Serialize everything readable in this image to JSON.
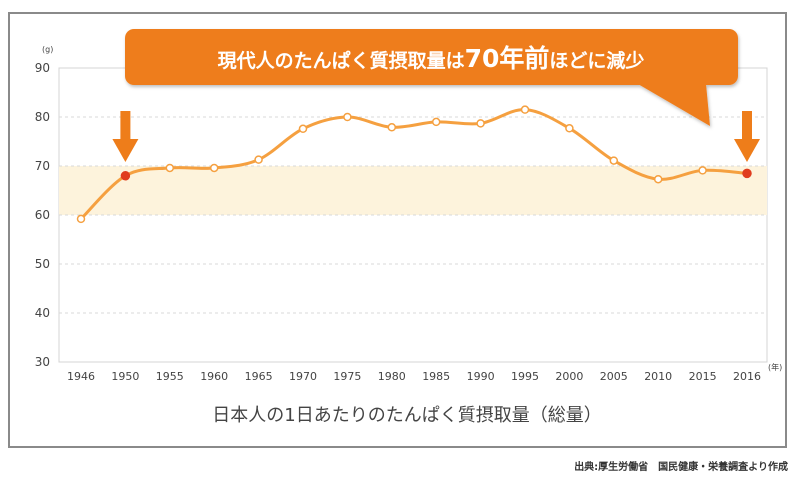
{
  "headline": {
    "part1": "現代人のたんぱく質摂取量は",
    "part2": "70年前",
    "part3": "ほどに減少"
  },
  "source_note": "出典:厚生労働省　国民健康・栄養調査より作成",
  "colors": {
    "line": "#f5a040",
    "highlight_point": "#e03c1e",
    "banner": "#ee7d1a",
    "band": "#fdf3dc",
    "arrow": "#ee7d1a"
  },
  "chart_data": {
    "type": "line",
    "title": "日本人の1日あたりのたんぱく質摂取量（総量）",
    "ylabel": "(g)",
    "xlabel": "(年)",
    "ylim": [
      30,
      90
    ],
    "yticks": [
      30,
      40,
      50,
      60,
      70,
      80,
      90
    ],
    "grid": true,
    "reference_band": [
      60,
      70
    ],
    "categories": [
      "1946",
      "1950",
      "1955",
      "1960",
      "1965",
      "1970",
      "1975",
      "1980",
      "1985",
      "1990",
      "1995",
      "2000",
      "2005",
      "2010",
      "2015",
      "2016"
    ],
    "series": [
      {
        "values": [
          59.2,
          68.0,
          69.6,
          69.6,
          71.3,
          77.6,
          80.0,
          77.9,
          79.0,
          78.7,
          81.5,
          77.7,
          71.1,
          67.3,
          69.1,
          68.5
        ]
      }
    ],
    "highlighted": [
      "1950",
      "2016"
    ]
  }
}
